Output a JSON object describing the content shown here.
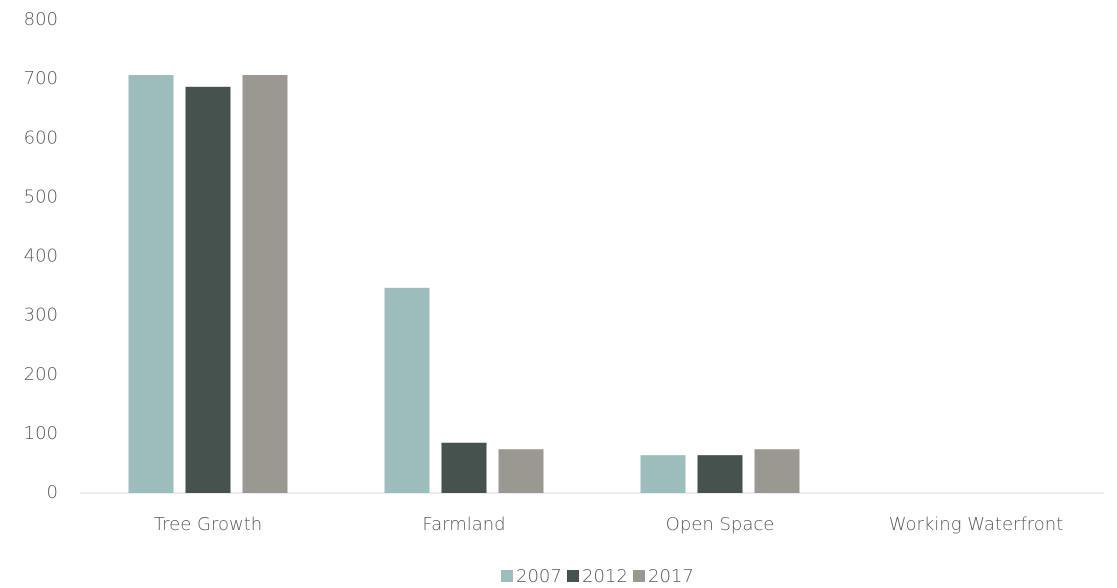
{
  "chart_data": {
    "type": "bar",
    "categories": [
      "Tree Growth",
      "Farmland",
      "Open Space",
      "Working Waterfront"
    ],
    "series": [
      {
        "name": "2007",
        "color": "#9dbdbc",
        "values": [
          707,
          347,
          64,
          0
        ]
      },
      {
        "name": "2012",
        "color": "#46524e",
        "values": [
          687,
          85,
          64,
          0
        ]
      },
      {
        "name": "2017",
        "color": "#9a9890",
        "values": [
          707,
          74,
          74,
          0
        ]
      }
    ],
    "ylim": [
      0,
      800
    ],
    "yticks": [
      0,
      100,
      200,
      300,
      400,
      500,
      600,
      700,
      800
    ],
    "grid": false,
    "legend": "bottom"
  }
}
